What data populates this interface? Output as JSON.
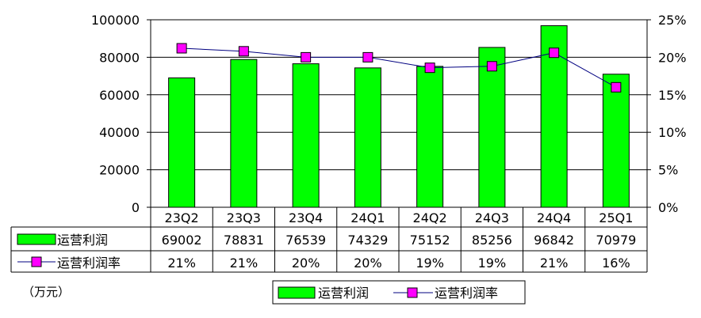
{
  "chart_data": {
    "type": "bar",
    "categories": [
      "23Q2",
      "23Q3",
      "23Q4",
      "24Q1",
      "24Q2",
      "24Q3",
      "24Q4",
      "25Q1"
    ],
    "series": [
      {
        "name": "运营利润",
        "kind": "bar",
        "axis": "left",
        "color": "#00ff00",
        "values": [
          69002,
          78831,
          76539,
          74329,
          75152,
          85256,
          96842,
          70979
        ]
      },
      {
        "name": "运营利润率",
        "kind": "line",
        "axis": "right",
        "color": "#ff00ff",
        "line_color": "#000080",
        "values": [
          0.212,
          0.208,
          0.2,
          0.2,
          0.186,
          0.188,
          0.206,
          0.16
        ],
        "labels": [
          "21%",
          "21%",
          "20%",
          "20%",
          "19%",
          "19%",
          "21%",
          "16%"
        ]
      }
    ],
    "y_left": {
      "min": 0,
      "max": 100000,
      "ticks": [
        "0",
        "20000",
        "40000",
        "60000",
        "80000",
        "100000"
      ]
    },
    "y_right": {
      "min": 0,
      "max": 0.25,
      "ticks": [
        "0%",
        "5%",
        "10%",
        "15%",
        "20%",
        "25%"
      ]
    },
    "unit": "（万元）",
    "legend": [
      "运营利润",
      "运营利润率"
    ],
    "legend_position": "bottom",
    "grid": true,
    "data_table": true
  }
}
